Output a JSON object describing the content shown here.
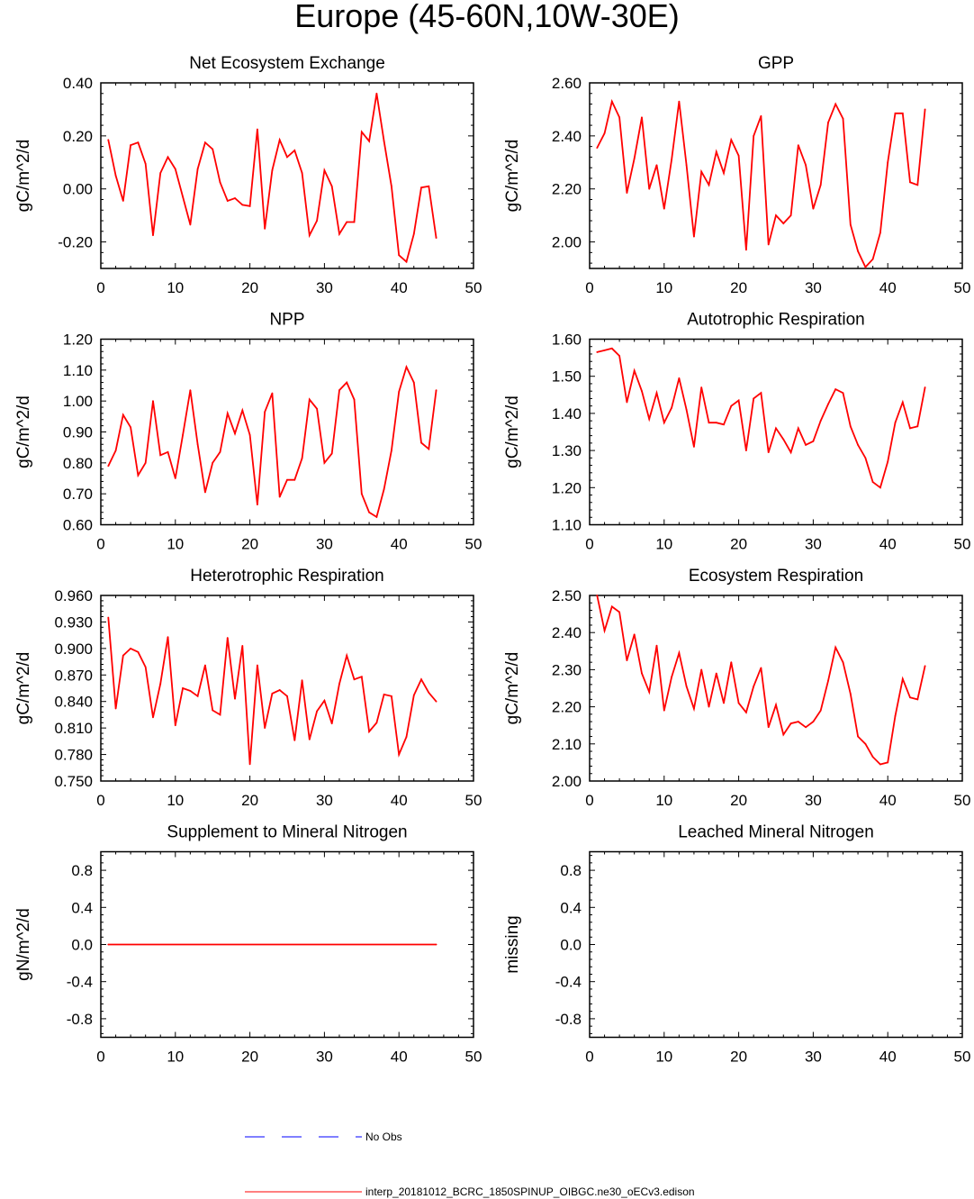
{
  "title": "Europe (45-60N,10W-30E)",
  "colors": {
    "model": "#ff0000",
    "obs": "#0000ff",
    "axis": "#000000"
  },
  "legend": {
    "obs_label": "No Obs",
    "model_label": "interp_20181012_BCRC_1850SPINUP_OIBGC.ne30_oECv3.edison"
  },
  "chart_data": [
    {
      "type": "line",
      "title": "Net Ecosystem Exchange",
      "ylabel": "gC/m^2/d",
      "xlim": [
        0,
        50
      ],
      "ylim": [
        -0.3,
        0.4
      ],
      "xticks": [
        0,
        10,
        20,
        30,
        40,
        50
      ],
      "xtick_labels": [
        "0",
        "10",
        "20",
        "30",
        "40",
        "50"
      ],
      "yticks": [
        -0.2,
        0.0,
        0.2,
        0.4
      ],
      "ytick_labels": [
        "-0.20",
        "0.00",
        "0.20",
        "0.40"
      ],
      "x": [
        1,
        2,
        3,
        4,
        5,
        6,
        7,
        8,
        9,
        10,
        11,
        12,
        13,
        14,
        15,
        16,
        17,
        18,
        19,
        20,
        21,
        22,
        23,
        24,
        25,
        26,
        27,
        28,
        29,
        30,
        31,
        32,
        33,
        34,
        35,
        36,
        37,
        38,
        39,
        40,
        41,
        42,
        43,
        44,
        45
      ],
      "series": [
        {
          "name": "interp_20181012_BCRC_1850SPINUP_OIBGC.ne30_oECv3.edison",
          "values": [
            0.185,
            0.05,
            -0.045,
            0.165,
            0.175,
            0.095,
            -0.175,
            0.06,
            0.12,
            0.075,
            -0.03,
            -0.135,
            0.075,
            0.175,
            0.15,
            0.025,
            -0.045,
            -0.035,
            -0.06,
            -0.065,
            0.225,
            -0.15,
            0.07,
            0.185,
            0.12,
            0.145,
            0.06,
            -0.175,
            -0.12,
            0.07,
            0.01,
            -0.17,
            -0.125,
            -0.125,
            0.215,
            0.18,
            0.36,
            0.18,
            0.01,
            -0.25,
            -0.275,
            -0.17,
            0.005,
            0.01,
            -0.185
          ]
        }
      ]
    },
    {
      "type": "line",
      "title": "GPP",
      "ylabel": "gC/m^2/d",
      "xlim": [
        0,
        50
      ],
      "ylim": [
        1.9,
        2.6
      ],
      "xticks": [
        0,
        10,
        20,
        30,
        40,
        50
      ],
      "xtick_labels": [
        "0",
        "10",
        "20",
        "30",
        "40",
        "50"
      ],
      "yticks": [
        2.0,
        2.2,
        2.4,
        2.6
      ],
      "ytick_labels": [
        "2.00",
        "2.20",
        "2.40",
        "2.60"
      ],
      "x": [
        1,
        2,
        3,
        4,
        5,
        6,
        7,
        8,
        9,
        10,
        11,
        12,
        13,
        14,
        15,
        16,
        17,
        18,
        19,
        20,
        21,
        22,
        23,
        24,
        25,
        26,
        27,
        28,
        29,
        30,
        31,
        32,
        33,
        34,
        35,
        36,
        37,
        38,
        39,
        40,
        41,
        42,
        43,
        44,
        45
      ],
      "series": [
        {
          "name": "interp_20181012_BCRC_1850SPINUP_OIBGC.ne30_oECv3.edison",
          "values": [
            2.355,
            2.41,
            2.53,
            2.47,
            2.185,
            2.315,
            2.47,
            2.2,
            2.29,
            2.125,
            2.31,
            2.53,
            2.29,
            2.02,
            2.265,
            2.215,
            2.34,
            2.26,
            2.385,
            2.325,
            1.97,
            2.4,
            2.475,
            1.99,
            2.1,
            2.07,
            2.1,
            2.365,
            2.29,
            2.125,
            2.215,
            2.45,
            2.52,
            2.465,
            2.065,
            1.965,
            1.905,
            1.935,
            2.035,
            2.3,
            2.485,
            2.485,
            2.225,
            2.215,
            2.5
          ]
        }
      ]
    },
    {
      "type": "line",
      "title": "NPP",
      "ylabel": "gC/m^2/d",
      "xlim": [
        0,
        50
      ],
      "ylim": [
        0.6,
        1.2
      ],
      "xticks": [
        0,
        10,
        20,
        30,
        40,
        50
      ],
      "xtick_labels": [
        "0",
        "10",
        "20",
        "30",
        "40",
        "50"
      ],
      "yticks": [
        0.6,
        0.7,
        0.8,
        0.9,
        1.0,
        1.1,
        1.2
      ],
      "ytick_labels": [
        "0.60",
        "0.70",
        "0.80",
        "0.90",
        "1.00",
        "1.10",
        "1.20"
      ],
      "x": [
        1,
        2,
        3,
        4,
        5,
        6,
        7,
        8,
        9,
        10,
        11,
        12,
        13,
        14,
        15,
        16,
        17,
        18,
        19,
        20,
        21,
        22,
        23,
        24,
        25,
        26,
        27,
        28,
        29,
        30,
        31,
        32,
        33,
        34,
        35,
        36,
        37,
        38,
        39,
        40,
        41,
        42,
        43,
        44,
        45
      ],
      "series": [
        {
          "name": "interp_20181012_BCRC_1850SPINUP_OIBGC.ne30_oECv3.edison",
          "values": [
            0.79,
            0.84,
            0.955,
            0.915,
            0.76,
            0.8,
            1.0,
            0.825,
            0.835,
            0.75,
            0.89,
            1.035,
            0.86,
            0.705,
            0.8,
            0.835,
            0.96,
            0.895,
            0.97,
            0.89,
            0.665,
            0.965,
            1.025,
            0.69,
            0.745,
            0.745,
            0.815,
            1.005,
            0.975,
            0.8,
            0.83,
            1.035,
            1.06,
            1.005,
            0.7,
            0.64,
            0.625,
            0.715,
            0.84,
            1.03,
            1.11,
            1.06,
            0.865,
            0.845,
            1.035
          ]
        }
      ]
    },
    {
      "type": "line",
      "title": "Autotrophic Respiration",
      "ylabel": "gC/m^2/d",
      "xlim": [
        0,
        50
      ],
      "ylim": [
        1.1,
        1.6
      ],
      "xticks": [
        0,
        10,
        20,
        30,
        40,
        50
      ],
      "xtick_labels": [
        "0",
        "10",
        "20",
        "30",
        "40",
        "50"
      ],
      "yticks": [
        1.1,
        1.2,
        1.3,
        1.4,
        1.5,
        1.6
      ],
      "ytick_labels": [
        "1.10",
        "1.20",
        "1.30",
        "1.40",
        "1.50",
        "1.60"
      ],
      "x": [
        1,
        2,
        3,
        4,
        5,
        6,
        7,
        8,
        9,
        10,
        11,
        12,
        13,
        14,
        15,
        16,
        17,
        18,
        19,
        20,
        21,
        22,
        23,
        24,
        25,
        26,
        27,
        28,
        29,
        30,
        31,
        32,
        33,
        34,
        35,
        36,
        37,
        38,
        39,
        40,
        41,
        42,
        43,
        44,
        45
      ],
      "series": [
        {
          "name": "interp_20181012_BCRC_1850SPINUP_OIBGC.ne30_oECv3.edison",
          "values": [
            1.565,
            1.57,
            1.575,
            1.555,
            1.43,
            1.515,
            1.46,
            1.385,
            1.455,
            1.375,
            1.415,
            1.495,
            1.41,
            1.31,
            1.47,
            1.375,
            1.375,
            1.37,
            1.42,
            1.435,
            1.3,
            1.44,
            1.455,
            1.295,
            1.36,
            1.33,
            1.295,
            1.36,
            1.315,
            1.325,
            1.38,
            1.425,
            1.465,
            1.455,
            1.365,
            1.315,
            1.28,
            1.215,
            1.2,
            1.27,
            1.375,
            1.43,
            1.36,
            1.365,
            1.47
          ]
        }
      ]
    },
    {
      "type": "line",
      "title": "Heterotrophic Respiration",
      "ylabel": "gC/m^2/d",
      "xlim": [
        0,
        50
      ],
      "ylim": [
        0.75,
        0.96
      ],
      "xticks": [
        0,
        10,
        20,
        30,
        40,
        50
      ],
      "xtick_labels": [
        "0",
        "10",
        "20",
        "30",
        "40",
        "50"
      ],
      "yticks": [
        0.75,
        0.78,
        0.81,
        0.84,
        0.87,
        0.9,
        0.93,
        0.96
      ],
      "ytick_labels": [
        "0.750",
        "0.780",
        "0.810",
        "0.840",
        "0.870",
        "0.900",
        "0.930",
        "0.960"
      ],
      "x": [
        1,
        2,
        3,
        4,
        5,
        6,
        7,
        8,
        9,
        10,
        11,
        12,
        13,
        14,
        15,
        16,
        17,
        18,
        19,
        20,
        21,
        22,
        23,
        24,
        25,
        26,
        27,
        28,
        29,
        30,
        31,
        32,
        33,
        34,
        35,
        36,
        37,
        38,
        39,
        40,
        41,
        42,
        43,
        44,
        45
      ],
      "series": [
        {
          "name": "interp_20181012_BCRC_1850SPINUP_OIBGC.ne30_oECv3.edison",
          "values": [
            0.935,
            0.832,
            0.892,
            0.9,
            0.896,
            0.879,
            0.822,
            0.86,
            0.913,
            0.813,
            0.855,
            0.852,
            0.846,
            0.881,
            0.83,
            0.825,
            0.912,
            0.843,
            0.903,
            0.769,
            0.881,
            0.81,
            0.849,
            0.853,
            0.846,
            0.796,
            0.864,
            0.797,
            0.829,
            0.841,
            0.815,
            0.86,
            0.892,
            0.865,
            0.868,
            0.806,
            0.816,
            0.848,
            0.846,
            0.78,
            0.8,
            0.847,
            0.865,
            0.85,
            0.84
          ]
        }
      ]
    },
    {
      "type": "line",
      "title": "Ecosystem Respiration",
      "ylabel": "gC/m^2/d",
      "xlim": [
        0,
        50
      ],
      "ylim": [
        2.0,
        2.5
      ],
      "xticks": [
        0,
        10,
        20,
        30,
        40,
        50
      ],
      "xtick_labels": [
        "0",
        "10",
        "20",
        "30",
        "40",
        "50"
      ],
      "yticks": [
        2.0,
        2.1,
        2.2,
        2.3,
        2.4,
        2.5
      ],
      "ytick_labels": [
        "2.00",
        "2.10",
        "2.20",
        "2.30",
        "2.40",
        "2.50"
      ],
      "x": [
        1,
        2,
        3,
        4,
        5,
        6,
        7,
        8,
        9,
        10,
        11,
        12,
        13,
        14,
        15,
        16,
        17,
        18,
        19,
        20,
        21,
        22,
        23,
        24,
        25,
        26,
        27,
        28,
        29,
        30,
        31,
        32,
        33,
        34,
        35,
        36,
        37,
        38,
        39,
        40,
        41,
        42,
        43,
        44,
        45
      ],
      "series": [
        {
          "name": "interp_20181012_BCRC_1850SPINUP_OIBGC.ne30_oECv3.edison",
          "values": [
            2.5,
            2.405,
            2.47,
            2.455,
            2.325,
            2.395,
            2.29,
            2.24,
            2.365,
            2.19,
            2.28,
            2.345,
            2.255,
            2.195,
            2.3,
            2.2,
            2.29,
            2.21,
            2.32,
            2.21,
            2.185,
            2.255,
            2.305,
            2.145,
            2.205,
            2.125,
            2.155,
            2.16,
            2.145,
            2.16,
            2.19,
            2.27,
            2.36,
            2.32,
            2.235,
            2.12,
            2.1,
            2.065,
            2.045,
            2.05,
            2.175,
            2.275,
            2.225,
            2.22,
            2.31
          ]
        }
      ]
    },
    {
      "type": "line",
      "title": "Supplement to Mineral Nitrogen",
      "ylabel": "gN/m^2/d",
      "xlim": [
        0,
        50
      ],
      "ylim": [
        -1.0,
        1.0
      ],
      "xticks": [
        0,
        10,
        20,
        30,
        40,
        50
      ],
      "xtick_labels": [
        "0",
        "10",
        "20",
        "30",
        "40",
        "50"
      ],
      "yticks": [
        -0.8,
        -0.4,
        0.0,
        0.4,
        0.8
      ],
      "ytick_labels": [
        "-0.8",
        "-0.4",
        "0.0",
        "0.4",
        "0.8"
      ],
      "x": [
        1,
        45
      ],
      "series": [
        {
          "name": "interp_20181012_BCRC_1850SPINUP_OIBGC.ne30_oECv3.edison",
          "values": [
            0.0,
            0.0
          ]
        }
      ]
    },
    {
      "type": "line",
      "title": "Leached Mineral Nitrogen",
      "ylabel": "missing",
      "xlim": [
        0,
        50
      ],
      "ylim": [
        -1.0,
        1.0
      ],
      "xticks": [
        0,
        10,
        20,
        30,
        40,
        50
      ],
      "xtick_labels": [
        "0",
        "10",
        "20",
        "30",
        "40",
        "50"
      ],
      "yticks": [
        -0.8,
        -0.4,
        0.0,
        0.4,
        0.8
      ],
      "ytick_labels": [
        "-0.8",
        "-0.4",
        "0.0",
        "0.4",
        "0.8"
      ],
      "x": [],
      "series": []
    }
  ]
}
